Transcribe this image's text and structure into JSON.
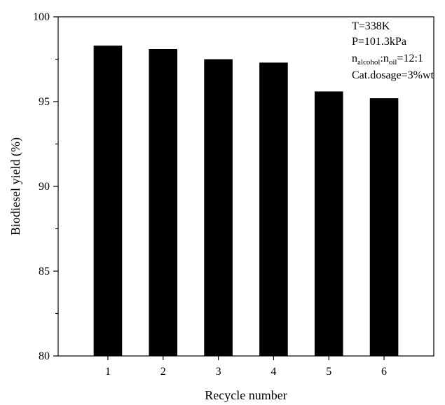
{
  "chart_data": {
    "type": "bar",
    "categories": [
      "1",
      "2",
      "3",
      "4",
      "5",
      "6"
    ],
    "values": [
      98.3,
      98.1,
      97.5,
      97.3,
      95.6,
      95.2
    ],
    "xlabel": "Recycle number",
    "ylabel": "Biodiesel yield (%)",
    "ylim": [
      80,
      100
    ],
    "yticks": [
      80,
      85,
      90,
      95,
      100
    ],
    "bar_color": "#000000",
    "grid": false,
    "annotations": {
      "temperature": "T=338K",
      "pressure": "P=101.3kPa",
      "ratio_n1": "n",
      "ratio_sub1": "alcohol",
      "ratio_mid": ":n",
      "ratio_sub2": "oil",
      "ratio_value": "=12:1",
      "catalyst": "Cat.dosage=3%wt"
    }
  }
}
